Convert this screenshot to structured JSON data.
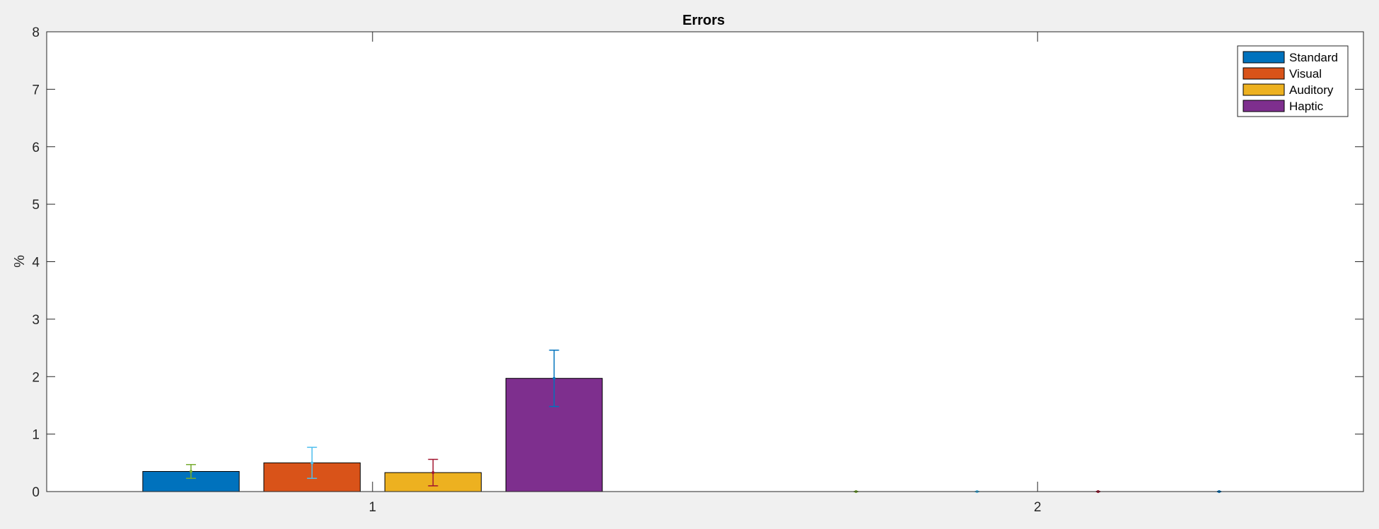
{
  "colors": {
    "background": "#f0f0f0",
    "axes_background": "#ffffff",
    "axis": "#262626",
    "bar_edge": "#000000"
  },
  "chart_data": {
    "type": "bar",
    "title": "Errors",
    "xlabel": "",
    "ylabel": "%",
    "categories": [
      "1",
      "2"
    ],
    "ylim": [
      0,
      8
    ],
    "yticks": [
      0,
      1,
      2,
      3,
      4,
      5,
      6,
      7,
      8
    ],
    "grid": false,
    "legend_position": "top-right",
    "series": [
      {
        "name": "Standard",
        "values": [
          0.35,
          0
        ],
        "error": [
          0.12,
          0
        ],
        "color": "#0072bd",
        "error_color": "#77ac30"
      },
      {
        "name": "Visual",
        "values": [
          0.5,
          0
        ],
        "error": [
          0.27,
          0
        ],
        "color": "#d95319",
        "error_color": "#4dbeee"
      },
      {
        "name": "Auditory",
        "values": [
          0.33,
          0
        ],
        "error": [
          0.23,
          0
        ],
        "color": "#edb120",
        "error_color": "#a2142f"
      },
      {
        "name": "Haptic",
        "values": [
          1.97,
          0
        ],
        "error": [
          0.49,
          0
        ],
        "color": "#7e2f8e",
        "error_color": "#0072bd"
      }
    ]
  }
}
